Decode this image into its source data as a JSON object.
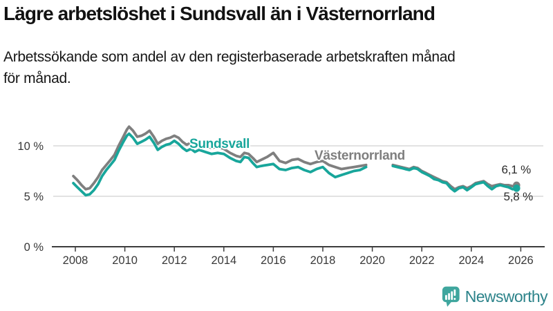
{
  "header": {
    "title": "Lägre arbetslöshet i Sundsvall än i Västernorrland",
    "subtitle_line1": "Arbetssökande som andel av den registerbaserade arbetskraften månad",
    "subtitle_line2": "för månad."
  },
  "chart_data": {
    "type": "line",
    "title": "Lägre arbetslöshet i Sundsvall än i Västernorrland",
    "subtitle": "Arbetssökande som andel av den registerbaserade arbetskraften månad för månad.",
    "unit": "%",
    "grid": "horizontal",
    "legend_position": "inline-labels",
    "x_axis": {
      "min": 2007.8,
      "max": 2026.6,
      "ticks": [
        2008,
        2010,
        2012,
        2014,
        2016,
        2018,
        2020,
        2022,
        2024,
        2026
      ],
      "tick_labels": [
        "2008",
        "2010",
        "2012",
        "2014",
        "2016",
        "2018",
        "2020",
        "2022",
        "2024",
        "2026"
      ]
    },
    "y_axis": {
      "min": 0,
      "max": 12.8,
      "ticks": [
        {
          "value": 0,
          "label": "0 %"
        },
        {
          "value": 5,
          "label": "5 %"
        },
        {
          "value": 10,
          "label": "10 %"
        }
      ]
    },
    "data_gap": {
      "from": 2019.9,
      "to": 2020.8
    },
    "series": [
      {
        "name": "Sundsvall",
        "color": "#18a69b",
        "end_label": "5,8 %",
        "end_value": 5.8,
        "points": [
          [
            2007.92,
            6.3
          ],
          [
            2008.08,
            5.9
          ],
          [
            2008.25,
            5.5
          ],
          [
            2008.42,
            5.1
          ],
          [
            2008.58,
            5.2
          ],
          [
            2008.75,
            5.6
          ],
          [
            2008.92,
            6.2
          ],
          [
            2009.08,
            7.0
          ],
          [
            2009.25,
            7.6
          ],
          [
            2009.42,
            8.1
          ],
          [
            2009.58,
            8.6
          ],
          [
            2009.75,
            9.5
          ],
          [
            2009.92,
            10.3
          ],
          [
            2010.08,
            11.0
          ],
          [
            2010.17,
            11.2
          ],
          [
            2010.33,
            10.8
          ],
          [
            2010.5,
            10.2
          ],
          [
            2010.67,
            10.4
          ],
          [
            2010.83,
            10.6
          ],
          [
            2011.0,
            10.9
          ],
          [
            2011.17,
            10.3
          ],
          [
            2011.33,
            9.6
          ],
          [
            2011.5,
            9.9
          ],
          [
            2011.67,
            10.1
          ],
          [
            2011.83,
            10.2
          ],
          [
            2012.0,
            10.5
          ],
          [
            2012.17,
            10.2
          ],
          [
            2012.33,
            9.8
          ],
          [
            2012.5,
            9.5
          ],
          [
            2012.67,
            9.7
          ],
          [
            2012.83,
            9.4
          ],
          [
            2013.0,
            9.6
          ],
          [
            2013.25,
            9.4
          ],
          [
            2013.5,
            9.2
          ],
          [
            2013.75,
            9.3
          ],
          [
            2014.0,
            9.2
          ],
          [
            2014.25,
            8.8
          ],
          [
            2014.5,
            8.5
          ],
          [
            2014.67,
            8.4
          ],
          [
            2014.83,
            8.9
          ],
          [
            2015.0,
            8.8
          ],
          [
            2015.17,
            8.3
          ],
          [
            2015.33,
            7.9
          ],
          [
            2015.5,
            8.0
          ],
          [
            2015.75,
            8.1
          ],
          [
            2016.0,
            8.2
          ],
          [
            2016.25,
            7.7
          ],
          [
            2016.5,
            7.6
          ],
          [
            2016.75,
            7.8
          ],
          [
            2017.0,
            7.9
          ],
          [
            2017.25,
            7.6
          ],
          [
            2017.5,
            7.4
          ],
          [
            2017.75,
            7.7
          ],
          [
            2018.0,
            7.9
          ],
          [
            2018.25,
            7.3
          ],
          [
            2018.5,
            6.9
          ],
          [
            2018.75,
            7.1
          ],
          [
            2019.0,
            7.3
          ],
          [
            2019.25,
            7.5
          ],
          [
            2019.5,
            7.6
          ],
          [
            2019.75,
            7.9
          ],
          null,
          [
            2020.83,
            8.0
          ],
          [
            2021.0,
            7.9
          ],
          [
            2021.17,
            7.8
          ],
          [
            2021.33,
            7.7
          ],
          [
            2021.5,
            7.6
          ],
          [
            2021.67,
            7.8
          ],
          [
            2021.83,
            7.7
          ],
          [
            2022.0,
            7.4
          ],
          [
            2022.17,
            7.2
          ],
          [
            2022.33,
            7.0
          ],
          [
            2022.5,
            6.7
          ],
          [
            2022.67,
            6.6
          ],
          [
            2022.83,
            6.4
          ],
          [
            2023.0,
            6.3
          ],
          [
            2023.17,
            5.8
          ],
          [
            2023.33,
            5.5
          ],
          [
            2023.5,
            5.8
          ],
          [
            2023.67,
            5.9
          ],
          [
            2023.83,
            5.6
          ],
          [
            2024.0,
            5.9
          ],
          [
            2024.17,
            6.2
          ],
          [
            2024.33,
            6.3
          ],
          [
            2024.5,
            6.4
          ],
          [
            2024.67,
            6.0
          ],
          [
            2024.83,
            5.7
          ],
          [
            2025.0,
            6.0
          ],
          [
            2025.17,
            6.1
          ],
          [
            2025.33,
            6.0
          ],
          [
            2025.5,
            5.9
          ],
          [
            2025.67,
            5.7
          ],
          [
            2025.83,
            5.8
          ]
        ]
      },
      {
        "name": "Västernorrland",
        "color": "#7f7f7f",
        "end_label": "6,1 %",
        "end_value": 6.1,
        "points": [
          [
            2007.92,
            7.0
          ],
          [
            2008.08,
            6.6
          ],
          [
            2008.25,
            6.1
          ],
          [
            2008.42,
            5.7
          ],
          [
            2008.58,
            5.8
          ],
          [
            2008.75,
            6.3
          ],
          [
            2008.92,
            6.9
          ],
          [
            2009.08,
            7.6
          ],
          [
            2009.25,
            8.1
          ],
          [
            2009.42,
            8.6
          ],
          [
            2009.58,
            9.1
          ],
          [
            2009.75,
            10.0
          ],
          [
            2009.92,
            10.8
          ],
          [
            2010.08,
            11.6
          ],
          [
            2010.17,
            11.9
          ],
          [
            2010.33,
            11.5
          ],
          [
            2010.5,
            10.9
          ],
          [
            2010.67,
            11.0
          ],
          [
            2010.83,
            11.2
          ],
          [
            2011.0,
            11.5
          ],
          [
            2011.17,
            10.9
          ],
          [
            2011.33,
            10.2
          ],
          [
            2011.5,
            10.5
          ],
          [
            2011.67,
            10.7
          ],
          [
            2011.83,
            10.8
          ],
          [
            2012.0,
            11.0
          ],
          [
            2012.17,
            10.8
          ],
          [
            2012.33,
            10.4
          ],
          [
            2012.5,
            10.1
          ],
          [
            2012.67,
            10.3
          ],
          [
            2012.83,
            10.0
          ],
          [
            2013.0,
            10.2
          ],
          [
            2013.25,
            10.0
          ],
          [
            2013.5,
            9.8
          ],
          [
            2013.75,
            9.9
          ],
          [
            2014.0,
            9.7
          ],
          [
            2014.25,
            9.3
          ],
          [
            2014.5,
            9.0
          ],
          [
            2014.67,
            8.9
          ],
          [
            2014.83,
            9.3
          ],
          [
            2015.0,
            9.2
          ],
          [
            2015.17,
            8.8
          ],
          [
            2015.33,
            8.4
          ],
          [
            2015.5,
            8.6
          ],
          [
            2015.75,
            8.9
          ],
          [
            2016.0,
            9.3
          ],
          [
            2016.25,
            8.5
          ],
          [
            2016.5,
            8.3
          ],
          [
            2016.75,
            8.6
          ],
          [
            2017.0,
            8.7
          ],
          [
            2017.25,
            8.4
          ],
          [
            2017.5,
            8.2
          ],
          [
            2017.75,
            8.4
          ],
          [
            2018.0,
            8.5
          ],
          [
            2018.25,
            8.1
          ],
          [
            2018.5,
            7.9
          ],
          [
            2018.75,
            7.7
          ],
          [
            2019.0,
            7.8
          ],
          [
            2019.25,
            7.9
          ],
          [
            2019.5,
            8.0
          ],
          [
            2019.75,
            8.1
          ],
          null,
          [
            2020.83,
            8.1
          ],
          [
            2021.0,
            8.0
          ],
          [
            2021.17,
            7.9
          ],
          [
            2021.33,
            7.8
          ],
          [
            2021.5,
            7.7
          ],
          [
            2021.67,
            7.9
          ],
          [
            2021.83,
            7.8
          ],
          [
            2022.0,
            7.5
          ],
          [
            2022.17,
            7.3
          ],
          [
            2022.33,
            7.1
          ],
          [
            2022.5,
            6.9
          ],
          [
            2022.67,
            6.7
          ],
          [
            2022.83,
            6.5
          ],
          [
            2023.0,
            6.4
          ],
          [
            2023.17,
            6.0
          ],
          [
            2023.33,
            5.7
          ],
          [
            2023.5,
            5.9
          ],
          [
            2023.67,
            6.0
          ],
          [
            2023.83,
            5.8
          ],
          [
            2024.0,
            6.0
          ],
          [
            2024.17,
            6.3
          ],
          [
            2024.33,
            6.4
          ],
          [
            2024.5,
            6.5
          ],
          [
            2024.67,
            6.2
          ],
          [
            2024.83,
            6.0
          ],
          [
            2025.0,
            6.1
          ],
          [
            2025.17,
            6.2
          ],
          [
            2025.33,
            6.1
          ],
          [
            2025.5,
            6.1
          ],
          [
            2025.67,
            6.0
          ],
          [
            2025.83,
            6.1
          ]
        ]
      }
    ]
  },
  "footer": {
    "brand": "Newsworthy",
    "brand_text_color": "#2c838a",
    "brand_icon": "bar-chart-speech-bubble-icon",
    "brand_icon_color": "#3fa69e"
  },
  "colors": {
    "background": "#ffffff",
    "axis": "#3c3c3c",
    "gridline": "#d9d9d9",
    "tick_text": "#383838",
    "annotation_text": "#2b2b2b"
  }
}
